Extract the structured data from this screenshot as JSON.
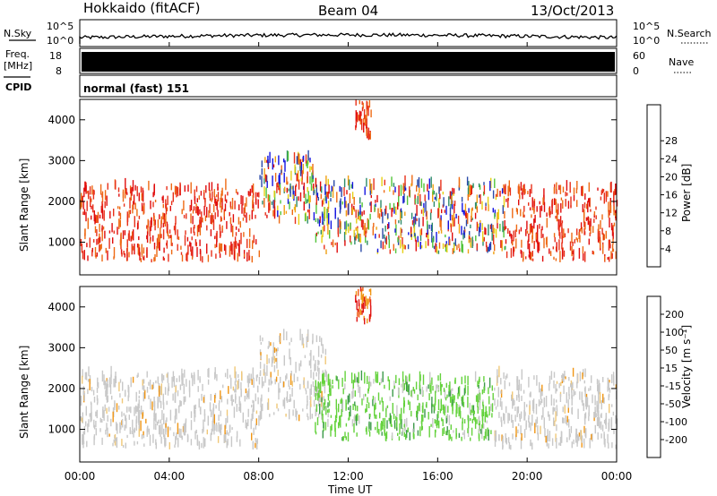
{
  "header": {
    "station": "Hokkaido (fitACF)",
    "beam": "Beam 04",
    "date": "13/Oct/2013"
  },
  "top_panels": {
    "nsky_label": "N.Sky",
    "nsky_ticks": [
      "10^5",
      "10^0"
    ],
    "nsearch_label": "N.Search",
    "nsearch_ticks": [
      "10^5",
      "10^0"
    ],
    "freq_label": "Freq.",
    "freq_unit": "[MHz]",
    "freq_ticks": [
      "18",
      "8"
    ],
    "nave_label": "Nave",
    "nave_ticks": [
      "60",
      "0"
    ],
    "cpid_label": "CPID",
    "cpid_text": "normal (fast) 151"
  },
  "x_axis": {
    "label": "Time UT",
    "ticks": [
      "00:00",
      "04:00",
      "08:00",
      "12:00",
      "16:00",
      "20:00",
      "00:00"
    ]
  },
  "chart_data": [
    {
      "type": "heatmap",
      "parameter": "power",
      "ylabel": "Slant Range [km]",
      "yticks": [
        1000,
        2000,
        3000,
        4000
      ],
      "ylim": [
        200,
        4500
      ],
      "xlim_hours": [
        0,
        24
      ],
      "colorbar": {
        "label": "Power [dB]",
        "ticks": [
          "4",
          "8",
          "12",
          "16",
          "20",
          "24",
          "28"
        ],
        "colors": [
          "#1414e0",
          "#2a4aa8",
          "#2e8c6a",
          "#52c43a",
          "#e6d014",
          "#f0a014",
          "#ee6a14",
          "#e8301a",
          "#e00c0c"
        ]
      },
      "regions": [
        {
          "x": [
            0,
            8
          ],
          "y": [
            500,
            2300
          ],
          "level": "high"
        },
        {
          "x": [
            8,
            10.5
          ],
          "y": [
            1400,
            3000
          ],
          "level": "mixed"
        },
        {
          "x": [
            10.5,
            19
          ],
          "y": [
            700,
            2400
          ],
          "level": "mixed"
        },
        {
          "x": [
            12.3,
            13
          ],
          "y": [
            3500,
            4400
          ],
          "level": "high"
        },
        {
          "x": [
            19,
            24
          ],
          "y": [
            500,
            2300
          ],
          "level": "high"
        }
      ]
    },
    {
      "type": "heatmap",
      "parameter": "velocity",
      "ylabel": "Slant Range [km]",
      "yticks": [
        1000,
        2000,
        3000,
        4000
      ],
      "ylim": [
        200,
        4500
      ],
      "xlim_hours": [
        0,
        24
      ],
      "colorbar": {
        "label": "Velocity [m s⁻¹]",
        "ticks": [
          "200",
          "100",
          "50",
          "15",
          "-15",
          "-50",
          "-100",
          "-200"
        ],
        "colors": [
          "#1a2ec8",
          "#2e6e9a",
          "#3c9a4a",
          "#64d23c",
          "#c8c8c8",
          "#f0c878",
          "#f09614",
          "#f05a14",
          "#e01414"
        ]
      },
      "regions": [
        {
          "x": [
            0,
            8
          ],
          "y": [
            500,
            2300
          ],
          "level": "near-zero"
        },
        {
          "x": [
            8,
            11
          ],
          "y": [
            1200,
            3200
          ],
          "level": "near-zero"
        },
        {
          "x": [
            10.5,
            18.5
          ],
          "y": [
            700,
            2200
          ],
          "level": "positive"
        },
        {
          "x": [
            12.3,
            13
          ],
          "y": [
            3500,
            4400
          ],
          "level": "negative"
        },
        {
          "x": [
            18.5,
            24
          ],
          "y": [
            500,
            2300
          ],
          "level": "near-zero"
        }
      ]
    }
  ]
}
